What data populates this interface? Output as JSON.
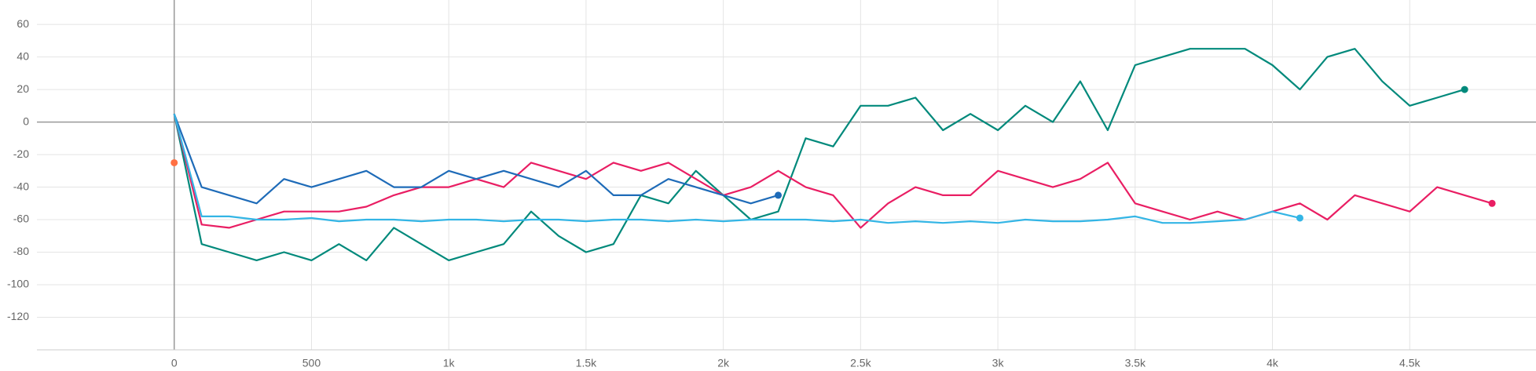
{
  "chart_data": {
    "type": "line",
    "x": [
      0,
      100,
      200,
      300,
      400,
      500,
      600,
      700,
      800,
      900,
      1000,
      1100,
      1200,
      1300,
      1400,
      1500,
      1600,
      1700,
      1800,
      1900,
      2000,
      2100,
      2200,
      2300,
      2400,
      2500,
      2600,
      2700,
      2800,
      2900,
      3000,
      3100,
      3200,
      3300,
      3400,
      3500,
      3600,
      3700,
      3800,
      3900,
      4000,
      4100,
      4200,
      4300,
      4400,
      4500,
      4600,
      4700,
      4800
    ],
    "series": [
      {
        "color": "#00897b",
        "values": [
          5,
          -75,
          -80,
          -85,
          -80,
          -85,
          -75,
          -85,
          -65,
          -75,
          -85,
          -80,
          -75,
          -55,
          -70,
          -80,
          -75,
          -45,
          -50,
          -30,
          -45,
          -60,
          -55,
          -10,
          -15,
          10,
          10,
          15,
          -5,
          5,
          -5,
          10,
          0,
          25,
          -5,
          35,
          40,
          45,
          45,
          45,
          35,
          20,
          40,
          45,
          25,
          10,
          15,
          20,
          null
        ]
      },
      {
        "color": "#e91e63",
        "values": [
          5,
          -63,
          -65,
          -60,
          -55,
          -55,
          -55,
          -52,
          -45,
          -40,
          -40,
          -35,
          -40,
          -25,
          -30,
          -35,
          -25,
          -30,
          -25,
          -35,
          -45,
          -40,
          -30,
          -40,
          -45,
          -65,
          -50,
          -40,
          -45,
          -45,
          -30,
          -35,
          -40,
          -35,
          -25,
          -50,
          -55,
          -60,
          -55,
          -60,
          -55,
          -50,
          -60,
          -45,
          -50,
          -55,
          -40,
          -45,
          -50
        ]
      },
      {
        "color": "#1e6bb8",
        "values": [
          5,
          -40,
          -45,
          -50,
          -35,
          -40,
          -35,
          -30,
          -40,
          -40,
          -30,
          -35,
          -30,
          -35,
          -40,
          -30,
          -45,
          -45,
          -35,
          -40,
          -45,
          -50,
          -45,
          null,
          null,
          null,
          null,
          null,
          null,
          null,
          null,
          null,
          null,
          null,
          null,
          null,
          null,
          null,
          null,
          null,
          null,
          null,
          null,
          null,
          null,
          null,
          null,
          null,
          null
        ]
      },
      {
        "color": "#33b5e5",
        "values": [
          5,
          -58,
          -58,
          -60,
          -60,
          -59,
          -61,
          -60,
          -60,
          -61,
          -60,
          -60,
          -61,
          -60,
          -60,
          -61,
          -60,
          -60,
          -61,
          -60,
          -61,
          -60,
          -60,
          -60,
          -61,
          -60,
          -62,
          -61,
          -62,
          -61,
          -62,
          -60,
          -61,
          -61,
          -60,
          -58,
          -62,
          -62,
          -61,
          -60,
          -55,
          -59,
          null,
          null,
          null,
          null,
          null,
          null,
          null
        ]
      },
      {
        "color": "#ff7043",
        "values": [
          -25,
          null,
          null,
          null,
          null,
          null,
          null,
          null,
          null,
          null,
          null,
          null,
          null,
          null,
          null,
          null,
          null,
          null,
          null,
          null,
          null,
          null,
          null,
          null,
          null,
          null,
          null,
          null,
          null,
          null,
          null,
          null,
          null,
          null,
          null,
          null,
          null,
          null,
          null,
          null,
          null,
          null,
          null,
          null,
          null,
          null,
          null,
          null,
          null
        ]
      }
    ],
    "xlim": [
      -500,
      4960
    ],
    "ylim": [
      -140,
      75
    ],
    "xticks": [
      0,
      500,
      {
        "value": 1000,
        "label": "1k"
      },
      {
        "value": 1500,
        "label": "1.5k"
      },
      {
        "value": 2000,
        "label": "2k"
      },
      {
        "value": 2500,
        "label": "2.5k"
      },
      {
        "value": 3000,
        "label": "3k"
      },
      {
        "value": 3500,
        "label": "3.5k"
      },
      {
        "value": 4000,
        "label": "4k"
      },
      {
        "value": 4500,
        "label": "4.5k"
      }
    ],
    "yticks": [
      -120,
      -100,
      -80,
      -60,
      -40,
      -20,
      0,
      20,
      40,
      60
    ],
    "grid": true
  }
}
